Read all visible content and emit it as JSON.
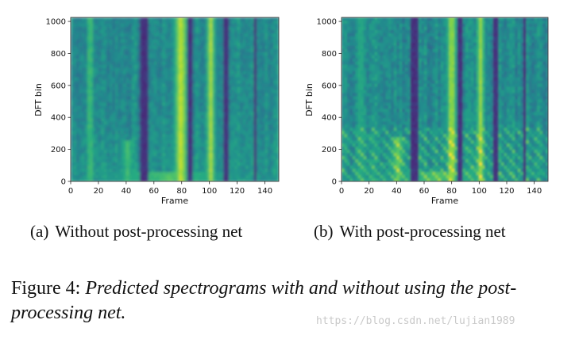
{
  "chart_data": [
    {
      "type": "heatmap",
      "panel": "a",
      "subcaption_tag": "(a)",
      "subcaption_text": "Without post-processing net",
      "xlabel": "Frame",
      "ylabel": "DFT bin",
      "xlim": [
        0,
        150
      ],
      "ylim": [
        0,
        1025
      ],
      "xticks": [
        0,
        20,
        40,
        60,
        80,
        100,
        120,
        140
      ],
      "yticks": [
        0,
        200,
        400,
        600,
        800,
        1000
      ],
      "colormap": "viridis",
      "dark_frames": [
        52,
        53,
        54,
        86,
        112,
        133
      ],
      "bright_bands": [
        {
          "frame_start": 12,
          "frame_end": 16,
          "max_bin": 1025,
          "intensity": 0.78
        },
        {
          "frame_start": 75,
          "frame_end": 84,
          "max_bin": 1025,
          "intensity": 0.95
        },
        {
          "frame_start": 98,
          "frame_end": 104,
          "max_bin": 1025,
          "intensity": 0.88
        },
        {
          "frame_start": 34,
          "frame_end": 48,
          "max_bin": 260,
          "intensity": 0.7
        },
        {
          "frame_start": 2,
          "frame_end": 140,
          "max_bin": 60,
          "intensity": 0.72
        }
      ],
      "harmonics": false
    },
    {
      "type": "heatmap",
      "panel": "b",
      "subcaption_tag": "(b)",
      "subcaption_text": "With post-processing net",
      "xlabel": "Frame",
      "ylabel": "DFT bin",
      "xlim": [
        0,
        150
      ],
      "ylim": [
        0,
        1025
      ],
      "xticks": [
        0,
        20,
        40,
        60,
        80,
        100,
        120,
        140
      ],
      "yticks": [
        0,
        200,
        400,
        600,
        800,
        1000
      ],
      "colormap": "viridis",
      "dark_frames": [
        52,
        53,
        54,
        86,
        112,
        133
      ],
      "bright_bands": [
        {
          "frame_start": 12,
          "frame_end": 16,
          "max_bin": 1025,
          "intensity": 0.7
        },
        {
          "frame_start": 77,
          "frame_end": 83,
          "max_bin": 1025,
          "intensity": 0.92
        },
        {
          "frame_start": 98,
          "frame_end": 104,
          "max_bin": 1025,
          "intensity": 0.85
        },
        {
          "frame_start": 34,
          "frame_end": 48,
          "max_bin": 280,
          "intensity": 0.75
        },
        {
          "frame_start": 2,
          "frame_end": 140,
          "max_bin": 60,
          "intensity": 0.7
        }
      ],
      "harmonics": true
    }
  ],
  "figure_caption": {
    "label": "Figure 4:",
    "text": "Predicted spectrograms with and without using the post-processing net."
  },
  "watermark": "https://blog.csdn.net/lujian1989"
}
